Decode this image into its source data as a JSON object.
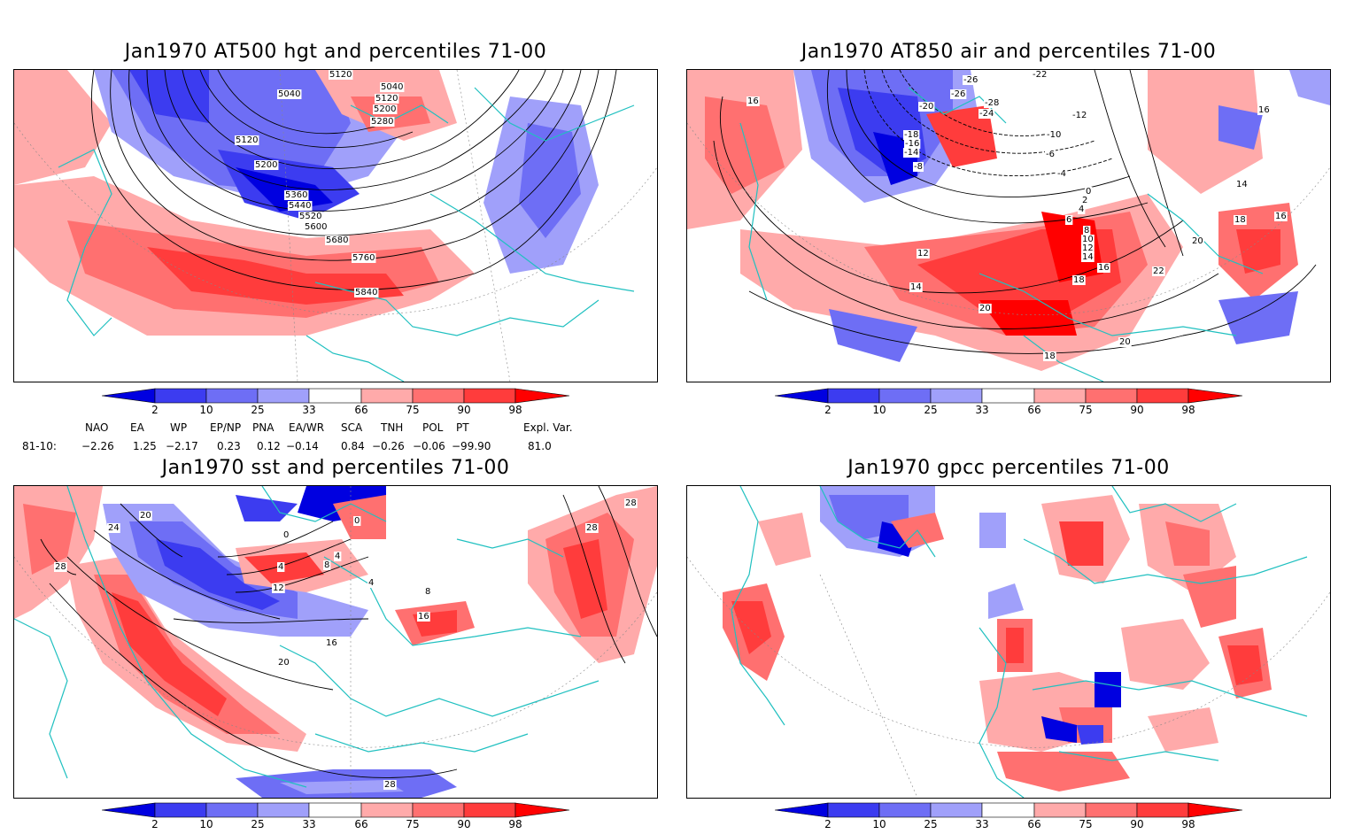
{
  "panels": [
    {
      "title": "Jan1970 AT500 hgt and percentiles 71-00",
      "contour_labels": [
        "5040",
        "5120",
        "5040",
        "5120",
        "5200",
        "5280",
        "5120",
        "5200",
        "5360",
        "5440",
        "5520",
        "5600",
        "5680",
        "5760",
        "5840"
      ]
    },
    {
      "title": "Jan1970 AT850 air and percentiles 71-00",
      "contour_labels": [
        "-26",
        "-22",
        "-26",
        "-20",
        "-28",
        "-24",
        "-18",
        "-16",
        "-14",
        "-12",
        "-10",
        "-8",
        "-6",
        "-4",
        "16",
        "16",
        "14",
        "16",
        "18",
        "0",
        "2",
        "4",
        "6",
        "8",
        "10",
        "12",
        "14",
        "16",
        "18",
        "20",
        "22",
        "12",
        "14",
        "20",
        "20",
        "18"
      ]
    },
    {
      "title": "Jan1970 sst and percentiles 71-00",
      "contour_labels": [
        "20",
        "24",
        "28",
        "0",
        "0",
        "4",
        "4",
        "8",
        "12",
        "16",
        "20",
        "4",
        "8",
        "16",
        "28",
        "28",
        "28"
      ]
    },
    {
      "title": "Jan1970 gpcc percentiles 71-00",
      "contour_labels": []
    }
  ],
  "colorbar": {
    "labels": [
      "2",
      "10",
      "25",
      "33",
      "66",
      "75",
      "90",
      "98"
    ],
    "colors": [
      "#0000e0",
      "#3c3cf0",
      "#6e6ef5",
      "#a0a0fa",
      "#ffffff",
      "#ffaaaa",
      "#ff7070",
      "#ff3c3c",
      "#ff0000"
    ]
  },
  "indices": {
    "headers": [
      "NAO",
      "EA",
      "WP",
      "EP/NP",
      "PNA",
      "EA/WR",
      "SCA",
      "TNH",
      "POL",
      "PT",
      "Expl. Var."
    ],
    "row_label": "81-10:",
    "values": [
      "−2.26",
      "1.25",
      "−2.17",
      "0.23",
      "0.12",
      "−0.14",
      "0.84",
      "−0.26",
      "−0.06",
      "−99.90",
      "81.0"
    ]
  },
  "colors": {
    "coast": "#20c0c0",
    "contour": "#000000"
  }
}
